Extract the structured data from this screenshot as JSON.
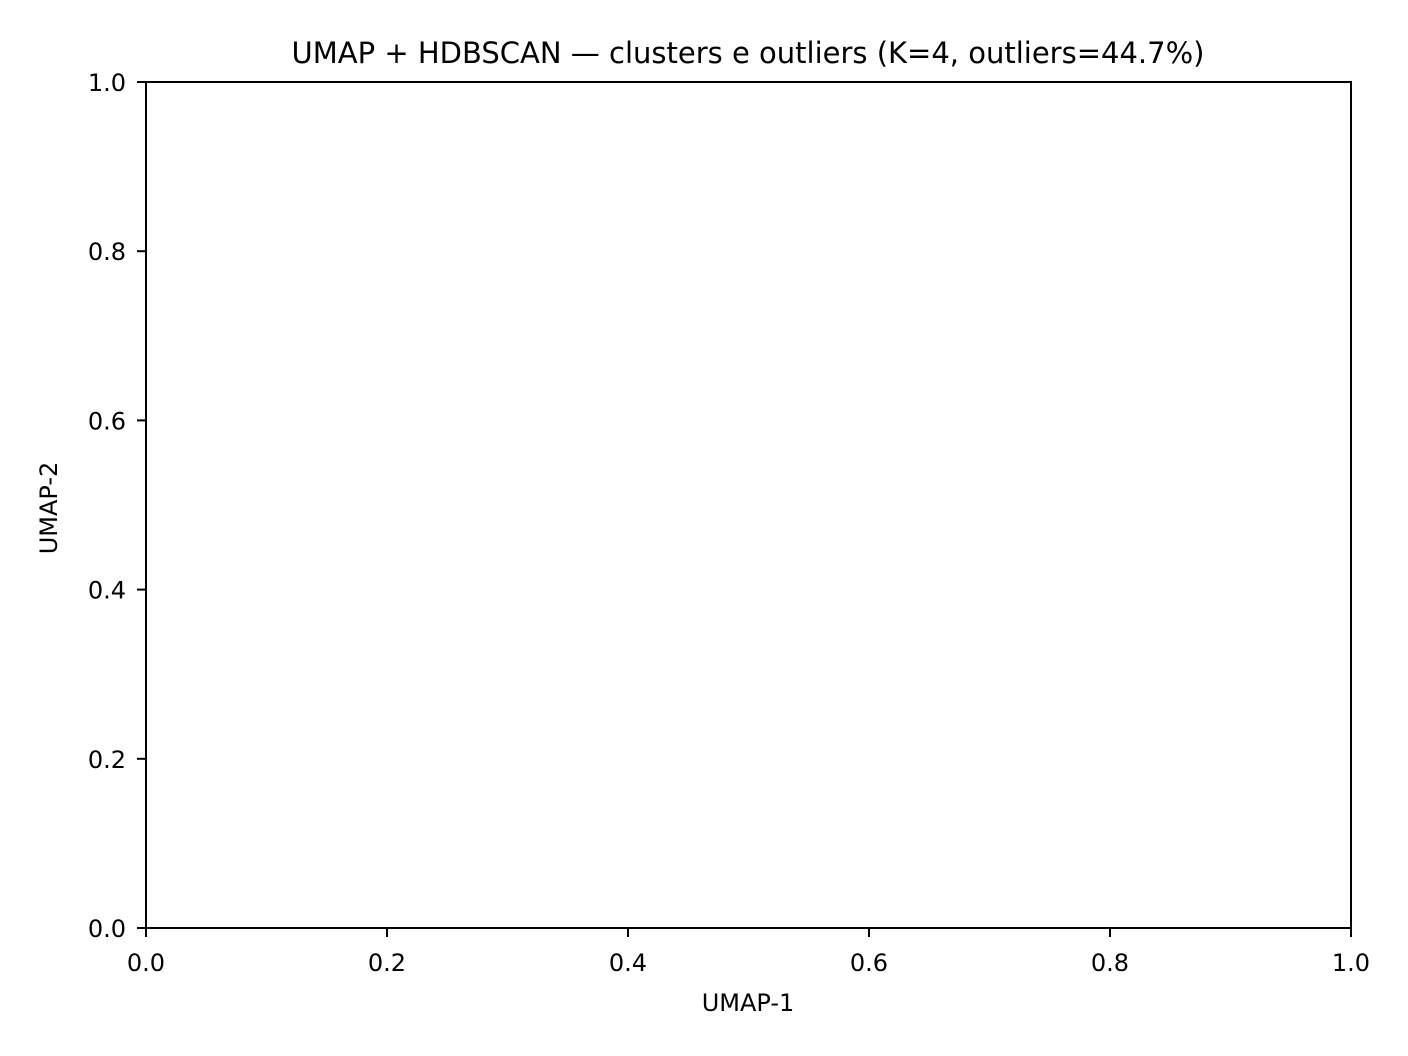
{
  "chart_data": {
    "type": "scatter",
    "title": "UMAP + HDBSCAN — clusters e outliers (K=4, outliers=44.7%)",
    "xlabel": "UMAP-1",
    "ylabel": "UMAP-2",
    "xlim": [
      0.0,
      1.0
    ],
    "ylim": [
      0.0,
      1.0
    ],
    "xticks": [
      0.0,
      0.2,
      0.4,
      0.6,
      0.8,
      1.0
    ],
    "yticks": [
      0.0,
      0.2,
      0.4,
      0.6,
      0.8,
      1.0
    ],
    "xtick_labels": [
      "0.0",
      "0.2",
      "0.4",
      "0.6",
      "0.8",
      "1.0"
    ],
    "ytick_labels": [
      "0.0",
      "0.2",
      "0.4",
      "0.6",
      "0.8",
      "1.0"
    ],
    "grid": false,
    "series": []
  }
}
